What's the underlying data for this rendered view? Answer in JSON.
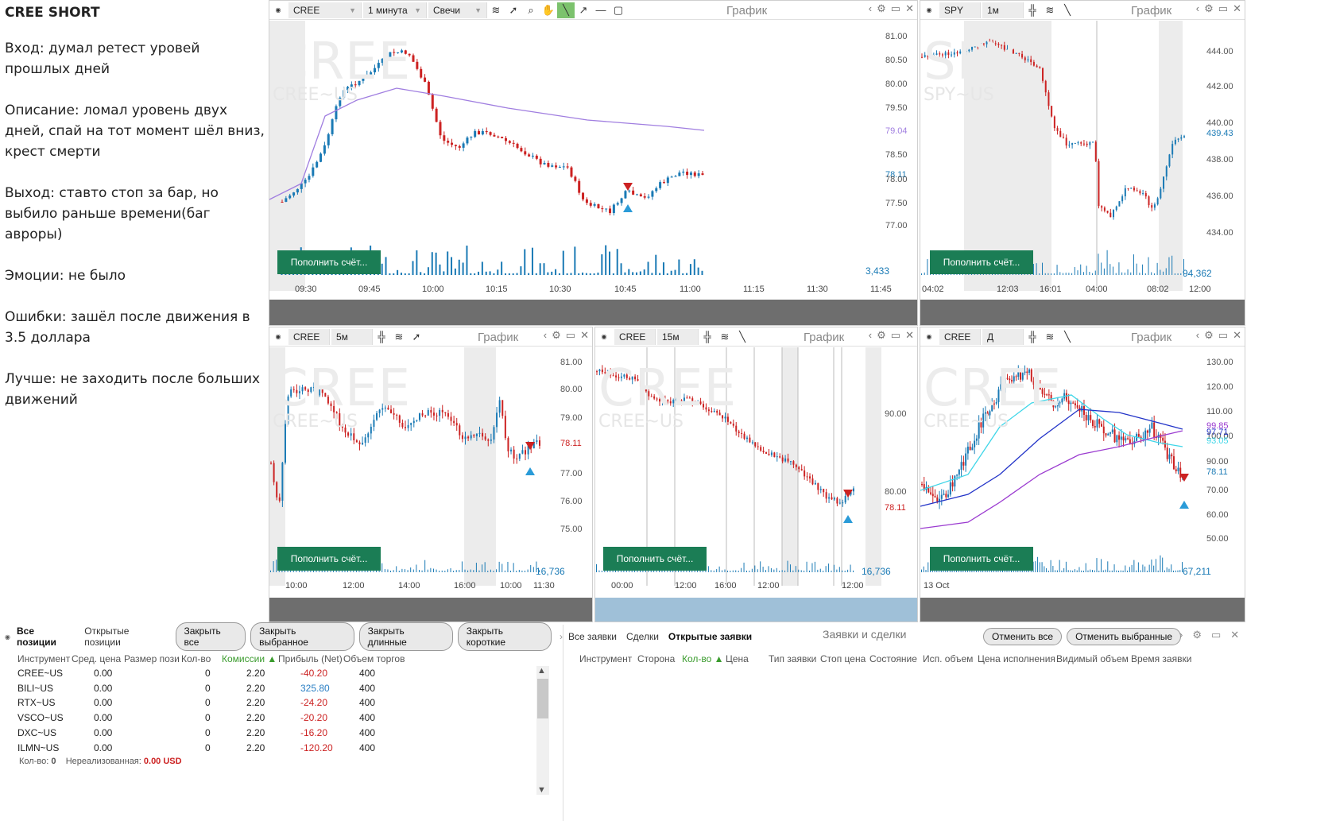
{
  "notes": {
    "title": "CREE SHORT",
    "paragraphs": [
      "Вход: думал ретест уровей прошлых дней",
      "Описание: ломал уровень двух дней, спай на тот момент шёл вниз, крест смерти",
      "Выход: ставто стоп за бар, но выбило раньше времени(баг авроры)",
      "Эмоции: не было",
      "Ошибки: зашёл после движения в 3.5 доллара",
      "Лучше: не заходить после больших движений"
    ]
  },
  "common": {
    "chart_title": "График",
    "fund_button": "Пополнить счёт...",
    "accent": "#1b7d55",
    "candle_up": "#1a7ab5",
    "candle_down": "#cc2222"
  },
  "panels": {
    "p1": {
      "symbol": "CREE",
      "interval": "1 минута",
      "type": "Свечи",
      "wm1": "CREE",
      "wm2": "CREE~US",
      "yticks": [
        "81.00",
        "80.50",
        "80.00",
        "79.50",
        "79.04",
        "78.50",
        "78.11",
        "78.00",
        "77.50",
        "77.00"
      ],
      "xticks": [
        "09:30",
        "09:45",
        "10:00",
        "10:15",
        "10:30",
        "10:45",
        "11:00",
        "11:15",
        "11:30",
        "11:45"
      ],
      "volume": "3,433"
    },
    "p2": {
      "symbol": "SPY",
      "interval": "1м",
      "wm1": "SPY",
      "wm2": "SPY~US",
      "yticks": [
        "444.00",
        "442.00",
        "440.00",
        "439.43",
        "438.00",
        "436.00",
        "434.00"
      ],
      "xticks": [
        "04:02",
        "12:03",
        "16:01",
        "04:00",
        "08:02",
        "12:00"
      ],
      "volume": "94,362"
    },
    "p3": {
      "symbol": "CREE",
      "interval": "5м",
      "wm1": "CREE",
      "wm2": "CREE~US",
      "yticks": [
        "81.00",
        "80.00",
        "79.00",
        "78.11",
        "77.00",
        "76.00",
        "75.00"
      ],
      "xticks": [
        "10:00",
        "12:00",
        "14:00",
        "16:00",
        "10:00",
        "11:30"
      ],
      "volume": "16,736"
    },
    "p4": {
      "symbol": "CREE",
      "interval": "15м",
      "wm1": "CREE",
      "wm2": "CREE~US",
      "yticks": [
        "90.00",
        "80.00",
        "78.11"
      ],
      "xticks": [
        "00:00",
        "12:00",
        "16:00",
        "12:00",
        "12:00"
      ],
      "volume": "16,736"
    },
    "p5": {
      "symbol": "CREE",
      "interval": "Д",
      "wm1": "CREE",
      "wm2": "CREE~US",
      "yticks": [
        "130.00",
        "120.00",
        "110.00",
        "100.00",
        "99.85",
        "97.71",
        "93.05",
        "90.00",
        "78.11",
        "70.00",
        "60.00",
        "50.00"
      ],
      "xticks": [
        "13 Oct"
      ],
      "volume": "67,211"
    }
  },
  "positions": {
    "tabs": [
      "Все позиции",
      "Открытые позиции"
    ],
    "buttons": [
      "Закрыть все",
      "Закрыть выбранное",
      "Закрыть длинные",
      "Закрыть короткие"
    ],
    "columns": [
      "Инструмент",
      "Сред. цена",
      "Размер пози",
      "Кол-во",
      "Комиссии ▲",
      "Прибыль (Net)",
      "Объем торгов"
    ],
    "rows": [
      {
        "inst": "CREE~US",
        "avg": "0.00",
        "qty": "0",
        "comm": "2.20",
        "pnl": "-40.20",
        "vol": "400"
      },
      {
        "inst": "BILI~US",
        "avg": "0.00",
        "qty": "0",
        "comm": "2.20",
        "pnl": "325.80",
        "vol": "400"
      },
      {
        "inst": "RTX~US",
        "avg": "0.00",
        "qty": "0",
        "comm": "2.20",
        "pnl": "-24.20",
        "vol": "400"
      },
      {
        "inst": "VSCO~US",
        "avg": "0.00",
        "qty": "0",
        "comm": "2.20",
        "pnl": "-20.20",
        "vol": "400"
      },
      {
        "inst": "DXC~US",
        "avg": "0.00",
        "qty": "0",
        "comm": "2.20",
        "pnl": "-16.20",
        "vol": "400"
      },
      {
        "inst": "ILMN~US",
        "avg": "0.00",
        "qty": "0",
        "comm": "2.20",
        "pnl": "-120.20",
        "vol": "400"
      }
    ],
    "footer_qty_label": "Кол-во:",
    "footer_qty": "0",
    "footer_unreal_label": "Нереализованная:",
    "footer_unreal": "0.00 USD"
  },
  "orders": {
    "tabs": [
      "Все заявки",
      "Сделки",
      "Открытые заявки"
    ],
    "title": "Заявки и сделки",
    "buttons": [
      "Отменить все",
      "Отменить выбранные"
    ],
    "columns": [
      "Инструмент",
      "Сторона",
      "Кол-во ▲",
      "Цена",
      "Тип заявки",
      "Стоп цена",
      "Состояние",
      "Исп. объем",
      "Цена исполнения",
      "Видимый объем",
      "Время заявки"
    ]
  }
}
